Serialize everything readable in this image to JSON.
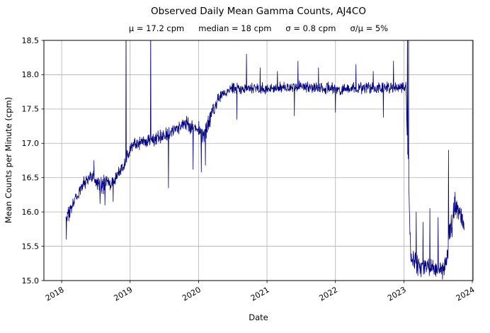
{
  "title": "Observed Daily Mean Gamma Counts, AJ4CO",
  "stats": {
    "mu": "μ = 17.2 cpm",
    "median": "median = 18 cpm",
    "sigma": "σ = 0.8 cpm",
    "sigma_over_mu": "σ/μ = 5%"
  },
  "xlabel": "Date",
  "ylabel": "Mean Counts per Minute (cpm)",
  "chart_data": {
    "type": "line",
    "series_name": "observed daily mean gamma counts",
    "title": "Observed Daily Mean Gamma Counts, AJ4CO",
    "subtitle_stats": [
      "μ = 17.2 cpm",
      "median = 18 cpm",
      "σ = 0.8 cpm",
      "σ/μ = 5%"
    ],
    "stats_values": {
      "mean_cpm": 17.2,
      "median_cpm": 18,
      "sigma_cpm": 0.8,
      "sigma_over_mu_pct": 5
    },
    "xlabel": "Date",
    "ylabel": "Mean Counts per Minute (cpm)",
    "line_color": "#000080",
    "grid": true,
    "legend": "none",
    "xlim": [
      2017.74,
      2024.01
    ],
    "ylim": [
      15.0,
      18.5
    ],
    "x_ticks": [
      2018,
      2019,
      2020,
      2021,
      2022,
      2023,
      2024
    ],
    "x_tick_labels": [
      "2018",
      "2019",
      "2020",
      "2021",
      "2022",
      "2023",
      "2024"
    ],
    "y_ticks": [
      15.0,
      15.5,
      16.0,
      16.5,
      17.0,
      17.5,
      18.0,
      18.5
    ],
    "y_tick_labels": [
      "15.0",
      "15.5",
      "16.0",
      "16.5",
      "17.0",
      "17.5",
      "18.0",
      "18.5"
    ],
    "x_range_data": [
      2018.06,
      2023.88
    ],
    "sample_step_years": 0.004,
    "noise_seed": 7,
    "trend_points": [
      [
        2018.06,
        15.85,
        0.1
      ],
      [
        2018.12,
        16.02,
        0.09
      ],
      [
        2018.2,
        16.18,
        0.08
      ],
      [
        2018.3,
        16.38,
        0.08
      ],
      [
        2018.42,
        16.52,
        0.09
      ],
      [
        2018.5,
        16.48,
        0.11
      ],
      [
        2018.58,
        16.35,
        0.12
      ],
      [
        2018.66,
        16.48,
        0.08
      ],
      [
        2018.73,
        16.38,
        0.1
      ],
      [
        2018.8,
        16.52,
        0.08
      ],
      [
        2018.88,
        16.62,
        0.09
      ],
      [
        2018.96,
        16.8,
        0.09
      ],
      [
        2019.05,
        16.98,
        0.08
      ],
      [
        2019.2,
        17.03,
        0.08
      ],
      [
        2019.35,
        17.06,
        0.08
      ],
      [
        2019.5,
        17.12,
        0.08
      ],
      [
        2019.65,
        17.2,
        0.08
      ],
      [
        2019.8,
        17.28,
        0.09
      ],
      [
        2019.92,
        17.25,
        0.1
      ],
      [
        2020.02,
        17.18,
        0.12
      ],
      [
        2020.08,
        17.1,
        0.14
      ],
      [
        2020.15,
        17.3,
        0.1
      ],
      [
        2020.25,
        17.58,
        0.08
      ],
      [
        2020.35,
        17.72,
        0.07
      ],
      [
        2020.5,
        17.8,
        0.07
      ],
      [
        2021.0,
        17.8,
        0.07
      ],
      [
        2021.5,
        17.82,
        0.07
      ],
      [
        2022.0,
        17.8,
        0.07
      ],
      [
        2022.5,
        17.8,
        0.07
      ],
      [
        2022.95,
        17.82,
        0.07
      ],
      [
        2023.03,
        17.85,
        0.08
      ],
      [
        2023.1,
        15.35,
        0.14
      ],
      [
        2023.2,
        15.22,
        0.12
      ],
      [
        2023.35,
        15.2,
        0.12
      ],
      [
        2023.5,
        15.15,
        0.11
      ],
      [
        2023.6,
        15.18,
        0.14
      ],
      [
        2023.68,
        15.75,
        0.22
      ],
      [
        2023.75,
        16.1,
        0.2
      ],
      [
        2023.82,
        16.0,
        0.18
      ],
      [
        2023.88,
        15.8,
        0.12
      ]
    ],
    "spikes": [
      [
        2018.07,
        15.6
      ],
      [
        2018.47,
        16.75
      ],
      [
        2018.56,
        16.12
      ],
      [
        2018.63,
        16.1
      ],
      [
        2018.75,
        16.15
      ],
      [
        2018.94,
        18.8
      ],
      [
        2019.3,
        18.8
      ],
      [
        2019.56,
        16.35
      ],
      [
        2019.92,
        16.62
      ],
      [
        2020.04,
        16.58
      ],
      [
        2020.1,
        16.68
      ],
      [
        2020.56,
        17.35
      ],
      [
        2020.7,
        18.3
      ],
      [
        2020.9,
        18.1
      ],
      [
        2021.15,
        18.05
      ],
      [
        2021.4,
        17.4
      ],
      [
        2021.45,
        18.2
      ],
      [
        2021.75,
        18.1
      ],
      [
        2022.0,
        17.45
      ],
      [
        2022.3,
        18.15
      ],
      [
        2022.55,
        18.05
      ],
      [
        2022.7,
        17.38
      ],
      [
        2022.85,
        18.2
      ],
      [
        2023.05,
        18.8
      ],
      [
        2023.07,
        18.8
      ],
      [
        2023.18,
        16.0
      ],
      [
        2023.28,
        15.85
      ],
      [
        2023.38,
        16.05
      ],
      [
        2023.5,
        15.92
      ],
      [
        2023.65,
        16.9
      ]
    ]
  }
}
